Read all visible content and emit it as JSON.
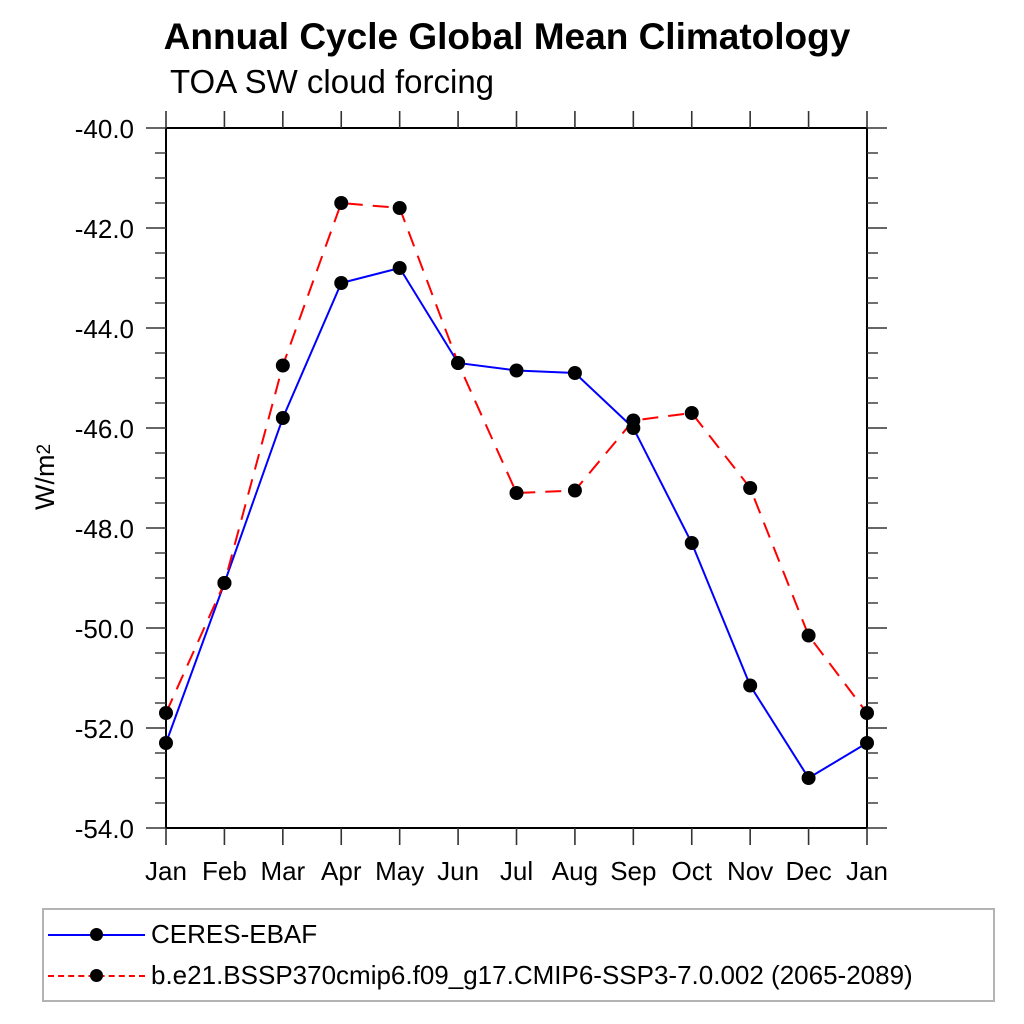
{
  "chart_data": {
    "type": "line",
    "title": "Annual Cycle Global Mean Climatology",
    "subtitle": "TOA SW cloud forcing",
    "ylabel": "W/m2",
    "ylabel_base": "W/m",
    "ylabel_exp": "2",
    "x_categories": [
      "Jan",
      "Feb",
      "Mar",
      "Apr",
      "May",
      "Jun",
      "Jul",
      "Aug",
      "Sep",
      "Oct",
      "Nov",
      "Dec",
      "Jan"
    ],
    "y_ticks_major": [
      -40,
      -42,
      -44,
      -46,
      -48,
      -50,
      -52,
      -54
    ],
    "y_tick_labels": [
      "-40.0",
      "-42.0",
      "-44.0",
      "-46.0",
      "-48.0",
      "-50.0",
      "-52.0",
      "-54.0"
    ],
    "y_minor_tick_step": 0.5,
    "ylim": [
      -54.0,
      -40.0
    ],
    "grid": false,
    "legend_position": "bottom",
    "series": [
      {
        "name": "CERES-EBAF",
        "color": "#0000ff",
        "line_style": "solid",
        "marker": "filled-circle",
        "marker_color": "#000000",
        "values": [
          -52.3,
          -49.1,
          -45.8,
          -43.1,
          -42.8,
          -44.7,
          -44.85,
          -44.9,
          -46.0,
          -48.3,
          -51.15,
          -53.0,
          -52.3
        ]
      },
      {
        "name": "b.e21.BSSP370cmip6.f09_g17.CMIP6-SSP3-7.0.002 (2065-2089)",
        "color": "#ff0000",
        "line_style": "dashed",
        "marker": "filled-circle",
        "marker_color": "#000000",
        "values": [
          -51.7,
          -49.1,
          -44.75,
          -41.5,
          -41.6,
          -44.7,
          -47.3,
          -47.25,
          -45.85,
          -45.7,
          -47.2,
          -50.15,
          -51.7
        ]
      }
    ]
  },
  "colors": {
    "background": "#ffffff",
    "frame": "#000000",
    "tick": "#333333",
    "text": "#000000",
    "legend_border": "#b3b3b3",
    "series_blue": "#0000ff",
    "series_red": "#ff0000",
    "marker": "#000000"
  }
}
